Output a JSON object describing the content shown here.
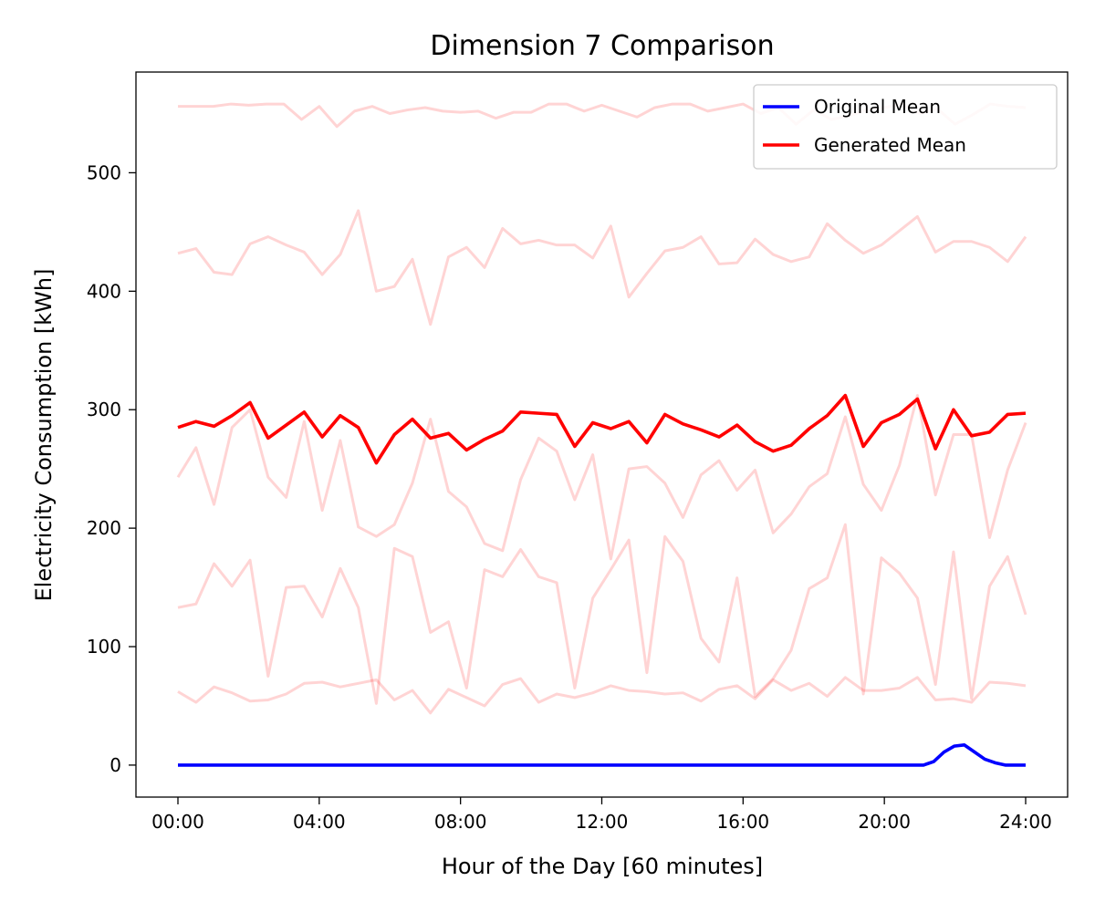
{
  "chart_data": {
    "type": "line",
    "title": "Dimension 7 Comparison",
    "xlabel": "Hour of the Day [60 minutes]",
    "ylabel": "Electricity Consumption [kWh]",
    "x_ticks": [
      "00:00",
      "04:00",
      "08:00",
      "12:00",
      "16:00",
      "20:00",
      "24:00"
    ],
    "xlim": [
      0,
      24
    ],
    "y_ticks": [
      0,
      100,
      200,
      300,
      400,
      500
    ],
    "ylim": [
      -27,
      585
    ],
    "grid": false,
    "legend_placement": "top-right",
    "colors": {
      "original": "#0000ff",
      "generated": "#ff0000",
      "samples": "#ff0000"
    },
    "series": [
      {
        "name": "Original Mean",
        "role": "original",
        "values": [
          0,
          0,
          0,
          0,
          0,
          0,
          0,
          0,
          0,
          0,
          0,
          0,
          0,
          0,
          0,
          0,
          0,
          0,
          0,
          0,
          0,
          0,
          0,
          0,
          0,
          0,
          0,
          0,
          0,
          0,
          0,
          0,
          0,
          0,
          0,
          0,
          0,
          0,
          0,
          0,
          0,
          0,
          0,
          0,
          0,
          0,
          0,
          0,
          0,
          0,
          0,
          0,
          0,
          0,
          0,
          0,
          0,
          0,
          0,
          0,
          0,
          0,
          0,
          0,
          0,
          0,
          0,
          0,
          0,
          0,
          0,
          0,
          0,
          0,
          3,
          11,
          16,
          17,
          11,
          5,
          2,
          0,
          0,
          0
        ]
      },
      {
        "name": "Generated Mean",
        "role": "generated",
        "values": [
          285,
          290,
          286,
          295,
          306,
          276,
          287,
          298,
          277,
          295,
          285,
          255,
          279,
          292,
          276,
          280,
          266,
          275,
          282,
          298,
          297,
          296,
          269,
          289,
          284,
          290,
          272,
          296,
          288,
          283,
          277,
          287,
          273,
          265,
          270,
          284,
          295,
          312,
          269,
          289,
          296,
          309,
          267,
          300,
          278,
          281,
          296,
          297
        ]
      },
      {
        "role": "sample",
        "values": [
          556,
          556,
          556,
          558,
          557,
          558,
          558,
          545,
          556,
          539,
          552,
          556,
          550,
          553,
          555,
          552,
          551,
          552,
          546,
          551,
          551,
          558,
          558,
          552,
          557,
          552,
          547,
          555,
          558,
          558,
          552,
          555,
          558,
          550,
          555,
          541,
          553,
          545,
          548,
          553,
          555,
          558,
          550,
          554,
          541,
          549,
          558,
          556,
          555
        ]
      },
      {
        "role": "sample",
        "values": [
          432,
          436,
          416,
          414,
          440,
          446,
          439,
          433,
          414,
          431,
          468,
          400,
          404,
          427,
          372,
          429,
          437,
          420,
          453,
          440,
          443,
          439,
          439,
          428,
          455,
          395,
          415,
          434,
          437,
          446,
          423,
          424,
          444,
          431,
          425,
          429,
          457,
          443,
          432,
          439,
          451,
          463,
          433,
          442,
          442,
          437,
          425,
          446
        ]
      },
      {
        "role": "sample",
        "values": [
          243,
          268,
          220,
          285,
          300,
          243,
          226,
          290,
          215,
          274,
          201,
          193,
          203,
          238,
          292,
          231,
          218,
          187,
          181,
          241,
          276,
          265,
          224,
          262,
          174,
          250,
          252,
          238,
          209,
          245,
          257,
          232,
          249,
          196,
          212,
          235,
          246,
          294,
          237,
          215,
          253,
          312,
          228,
          279,
          279,
          192,
          249,
          289
        ]
      },
      {
        "role": "sample",
        "values": [
          133,
          136,
          170,
          151,
          173,
          75,
          150,
          151,
          125,
          166,
          133,
          52,
          183,
          176,
          112,
          121,
          65,
          165,
          159,
          182,
          159,
          154,
          65,
          141,
          165,
          190,
          78,
          193,
          172,
          107,
          87,
          158,
          58,
          73,
          97,
          149,
          158,
          203,
          60,
          175,
          162,
          141,
          68,
          180,
          56,
          151,
          176,
          127
        ]
      },
      {
        "role": "sample",
        "values": [
          62,
          53,
          66,
          61,
          54,
          55,
          60,
          69,
          70,
          66,
          69,
          72,
          55,
          63,
          44,
          64,
          57,
          50,
          68,
          73,
          53,
          60,
          57,
          61,
          67,
          63,
          62,
          60,
          61,
          54,
          64,
          67,
          56,
          72,
          63,
          69,
          58,
          74,
          63,
          63,
          65,
          74,
          55,
          56,
          53,
          70,
          69,
          67
        ]
      }
    ],
    "legend": [
      {
        "label": "Original Mean",
        "role": "original"
      },
      {
        "label": "Generated Mean",
        "role": "generated"
      }
    ]
  }
}
